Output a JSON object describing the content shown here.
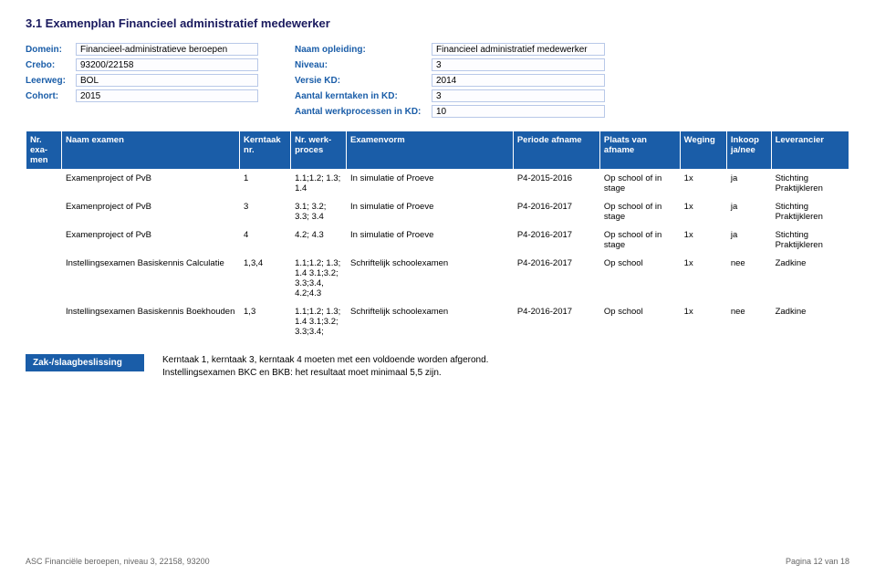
{
  "title": "3.1 Examenplan Financieel administratief medewerker",
  "meta_left": {
    "domein_label": "Domein:",
    "domein_val": "Financieel-administratieve beroepen",
    "crebo_label": "Crebo:",
    "crebo_val": "93200/22158",
    "leerweg_label": "Leerweg:",
    "leerweg_val": "BOL",
    "cohort_label": "Cohort:",
    "cohort_val": "2015"
  },
  "meta_right": {
    "naam_label": "Naam opleiding:",
    "naam_val": "Financieel administratief medewerker",
    "niveau_label": "Niveau:",
    "niveau_val": "3",
    "versie_label": "Versie KD:",
    "versie_val": "2014",
    "kerntaken_label": "Aantal kerntaken in KD:",
    "kerntaken_val": "3",
    "werkproc_label": "Aantal werkprocessen in KD:",
    "werkproc_val": "10"
  },
  "headers": {
    "nr": "Nr. exa-men",
    "naam": "Naam examen",
    "kerntaak": "Kerntaak nr.",
    "werkproces": "Nr. werk-proces",
    "vorm": "Examenvorm",
    "periode": "Periode afname",
    "plaats": "Plaats van afname",
    "weging": "Weging",
    "inkoop": "Inkoop ja/nee",
    "lever": "Leverancier"
  },
  "rows": [
    {
      "nr": "",
      "naam": "Examenproject of PvB",
      "kt": "1",
      "wp": "1.1;1.2; 1.3; 1.4",
      "vorm": "In simulatie of Proeve",
      "periode": "P4-2015-2016",
      "plaats": "Op school  of in stage",
      "weging": "1x",
      "inkoop": "ja",
      "lever": "Stichting Praktijkleren"
    },
    {
      "nr": "",
      "naam": "Examenproject of PvB",
      "kt": "3",
      "wp": "3.1; 3.2; 3.3; 3.4",
      "vorm": "In simulatie of Proeve",
      "periode": "P4-2016-2017",
      "plaats": "Op school  of in stage",
      "weging": "1x",
      "inkoop": "ja",
      "lever": "Stichting Praktijkleren"
    },
    {
      "nr": "",
      "naam": "Examenproject of PvB",
      "kt": "4",
      "wp": "4.2; 4.3",
      "vorm": "In simulatie of Proeve",
      "periode": "P4-2016-2017",
      "plaats": "Op school  of in stage",
      "weging": "1x",
      "inkoop": "ja",
      "lever": "Stichting Praktijkleren"
    },
    {
      "nr": "",
      "naam": "Instellingsexamen  Basiskennis Calculatie",
      "kt": "1,3,4",
      "wp": "1.1;1.2; 1.3; 1.4 3.1;3.2; 3.3;3.4, 4.2;4.3",
      "vorm": "Schriftelijk schoolexamen",
      "periode": "P4-2016-2017",
      "plaats": "Op school",
      "weging": "1x",
      "inkoop": "nee",
      "lever": "Zadkine"
    },
    {
      "nr": "",
      "naam": "Instellingsexamen  Basiskennis Boekhouden",
      "kt": "1,3",
      "wp": "1.1;1.2; 1.3; 1.4 3.1;3.2; 3.3;3.4;",
      "vorm": "Schriftelijk schoolexamen",
      "periode": "P4-2016-2017",
      "plaats": "Op school",
      "weging": "1x",
      "inkoop": "nee",
      "lever": "Zadkine"
    }
  ],
  "footer": {
    "label": "Zak-/slaagbeslissing",
    "line1": "Kerntaak 1, kerntaak 3, kerntaak 4 moeten met een voldoende worden afgerond.",
    "line2": "Instellingsexamen BKC en BKB: het resultaat moet minimaal 5,5 zijn."
  },
  "pagefoot": {
    "left": "ASC Financiële beroepen, niveau 3, 22158, 93200",
    "right": "Pagina 12 van 18"
  }
}
